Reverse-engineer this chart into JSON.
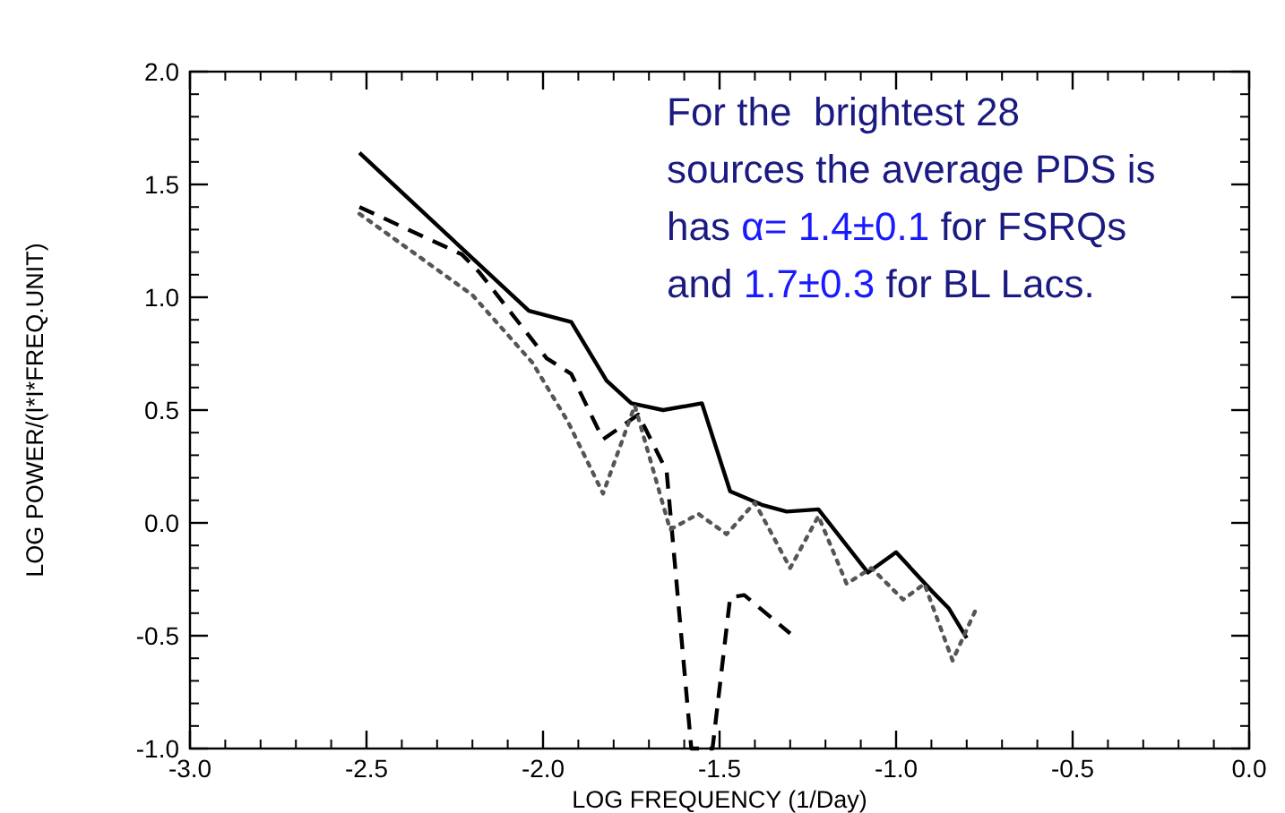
{
  "chart_data": {
    "type": "line",
    "xlabel": "LOG FREQUENCY (1/Day)",
    "ylabel": "LOG POWER/(I*I*FREQ.UNIT)",
    "xlim": [
      -3.0,
      0.0
    ],
    "ylim": [
      -1.0,
      2.0
    ],
    "xticks": [
      {
        "value": -3.0,
        "label": "-3.0"
      },
      {
        "value": -2.5,
        "label": "-2.5"
      },
      {
        "value": -2.0,
        "label": "-2.0"
      },
      {
        "value": -1.5,
        "label": "-1.5"
      },
      {
        "value": -1.0,
        "label": "-1.0"
      },
      {
        "value": -0.5,
        "label": "-0.5"
      },
      {
        "value": 0.0,
        "label": "0.0"
      }
    ],
    "yticks": [
      {
        "value": -1.0,
        "label": "-1.0"
      },
      {
        "value": -0.5,
        "label": "-0.5"
      },
      {
        "value": 0.0,
        "label": "0.0"
      },
      {
        "value": 0.5,
        "label": "0.5"
      },
      {
        "value": 1.0,
        "label": "1.0"
      },
      {
        "value": 1.5,
        "label": "1.5"
      },
      {
        "value": 2.0,
        "label": "2.0"
      }
    ],
    "grid": false,
    "marker": "none",
    "series": [
      {
        "color": "#000000",
        "line_style": "solid",
        "x": [
          -2.52,
          -2.04,
          -1.92,
          -1.82,
          -1.75,
          -1.66,
          -1.55,
          -1.47,
          -1.38,
          -1.31,
          -1.22,
          -1.08,
          -1.0,
          -0.9,
          -0.85,
          -0.8
        ],
        "values": [
          1.64,
          0.94,
          0.89,
          0.63,
          0.53,
          0.5,
          0.53,
          0.14,
          0.08,
          0.05,
          0.06,
          -0.22,
          -0.13,
          -0.3,
          -0.38,
          -0.51
        ]
      },
      {
        "color": "#000000",
        "line_style": "dashed",
        "x": [
          -2.52,
          -2.23,
          -2.18,
          -1.99,
          -1.92,
          -1.83,
          -1.73,
          -1.65,
          -1.58,
          -1.52,
          -1.47,
          -1.43,
          -1.3
        ],
        "values": [
          1.4,
          1.19,
          1.11,
          0.73,
          0.66,
          0.37,
          0.48,
          0.23,
          -1.0,
          -1.0,
          -0.33,
          -0.32,
          -0.49
        ]
      },
      {
        "color": "#555555",
        "line_style": "dotted",
        "x": [
          -2.52,
          -2.2,
          -2.03,
          -1.93,
          -1.83,
          -1.74,
          -1.64,
          -1.56,
          -1.48,
          -1.4,
          -1.3,
          -1.22,
          -1.14,
          -1.07,
          -0.98,
          -0.92,
          -0.84,
          -0.77
        ],
        "values": [
          1.37,
          1.01,
          0.71,
          0.45,
          0.13,
          0.52,
          -0.03,
          0.04,
          -0.05,
          0.09,
          -0.2,
          0.03,
          -0.27,
          -0.2,
          -0.34,
          -0.27,
          -0.61,
          -0.37
        ]
      }
    ],
    "annotations": [
      "For the  brightest 28\nsources the average PDS is\nhas α= 1.4±0.1 for FSRQs\nand 1.7±0.3 for BL Lacs."
    ]
  }
}
